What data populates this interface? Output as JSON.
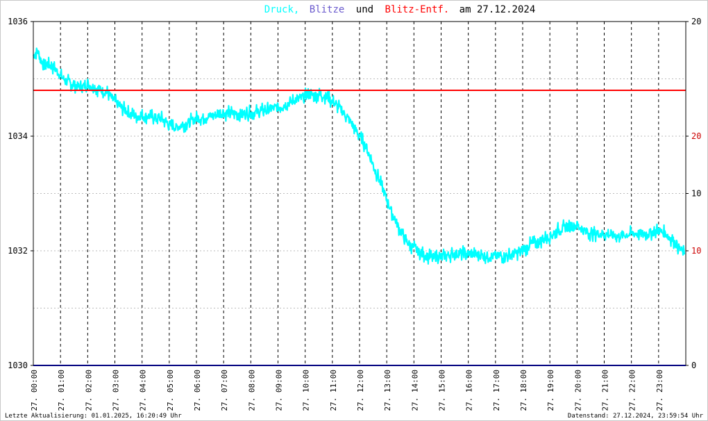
{
  "header": {
    "title_parts": [
      {
        "text": "Druck,",
        "color": "#00ffff"
      },
      {
        "text": "Blitze",
        "color": "#6a5acd"
      },
      {
        "text": "und",
        "color": "#000000"
      },
      {
        "text": "Blitz-Entf.",
        "color": "#ff0000"
      },
      {
        "text": "am 27.12.2024",
        "color": "#000000"
      }
    ]
  },
  "footer": {
    "left": "Letzte Aktualisierung: 01.01.2025, 16:20:49 Uhr",
    "right": "Datenstand: 27.12.2024, 23:59:54 Uhr"
  },
  "colors": {
    "pressure": "#00ffff",
    "lightning": "#00007f",
    "distance": "#ff0000",
    "grid": "#000000",
    "axis": "#000000"
  },
  "chart_data": {
    "type": "line",
    "x_tick_labels": [
      "27. 00:00",
      "27. 01:00",
      "27. 02:00",
      "27. 03:00",
      "27. 04:00",
      "27. 05:00",
      "27. 06:00",
      "27. 07:00",
      "27. 08:00",
      "27. 09:00",
      "27. 10:00",
      "27. 11:00",
      "27. 12:00",
      "27. 13:00",
      "27. 14:00",
      "27. 15:00",
      "27. 16:00",
      "27. 17:00",
      "27. 18:00",
      "27. 19:00",
      "27. 20:00",
      "27. 21:00",
      "27. 22:00",
      "27. 23:00"
    ],
    "x_range_hours": [
      0,
      24
    ],
    "y_left": {
      "range": [
        1030,
        1036
      ],
      "ticks": [
        "1030",
        "1032",
        "1034",
        "1036"
      ]
    },
    "y_right_upper": {
      "ticks": [
        {
          "label": "20",
          "color": "#000000"
        },
        {
          "label": "10",
          "color": "#000000"
        }
      ]
    },
    "y_right_lower": {
      "ticks": [
        {
          "label": "20",
          "color": "#cc0000"
        },
        {
          "label": "10",
          "color": "#cc0000"
        },
        {
          "label": "0",
          "color": "#000000"
        }
      ]
    },
    "series": [
      {
        "key": "pressure",
        "x": [
          0,
          0.15,
          0.3,
          0.5,
          0.75,
          1.0,
          1.25,
          1.5,
          1.75,
          2.0,
          2.25,
          2.5,
          2.75,
          3.0,
          3.25,
          3.5,
          3.75,
          4.0,
          4.25,
          4.5,
          4.75,
          5.0,
          5.25,
          5.5,
          5.75,
          6.0,
          6.5,
          7.0,
          7.5,
          8.0,
          8.5,
          9.0,
          9.25,
          9.5,
          9.75,
          10.0,
          10.25,
          10.5,
          10.75,
          11.0,
          11.25,
          11.5,
          11.75,
          12.0,
          12.25,
          12.5,
          12.75,
          13.0,
          13.25,
          13.5,
          13.75,
          14.0,
          14.25,
          14.5,
          14.75,
          15.0,
          15.5,
          16.0,
          16.5,
          17.0,
          17.5,
          18.0,
          18.25,
          18.5,
          18.75,
          19.0,
          19.25,
          19.5,
          19.75,
          20.0,
          20.25,
          20.5,
          21.0,
          21.5,
          22.0,
          22.5,
          22.75,
          23.0,
          23.25,
          23.5,
          23.75,
          23.95
        ],
        "y": [
          1035.4,
          1035.5,
          1035.3,
          1035.25,
          1035.2,
          1035.05,
          1034.95,
          1034.9,
          1034.85,
          1034.9,
          1034.85,
          1034.8,
          1034.75,
          1034.6,
          1034.5,
          1034.4,
          1034.35,
          1034.35,
          1034.35,
          1034.32,
          1034.3,
          1034.2,
          1034.15,
          1034.2,
          1034.25,
          1034.3,
          1034.35,
          1034.4,
          1034.4,
          1034.4,
          1034.45,
          1034.5,
          1034.55,
          1034.6,
          1034.65,
          1034.7,
          1034.72,
          1034.72,
          1034.7,
          1034.6,
          1034.5,
          1034.35,
          1034.2,
          1034.0,
          1033.8,
          1033.5,
          1033.2,
          1032.9,
          1032.6,
          1032.35,
          1032.15,
          1032.05,
          1031.95,
          1031.9,
          1031.88,
          1031.9,
          1031.95,
          1031.95,
          1031.92,
          1031.9,
          1031.92,
          1032.0,
          1032.1,
          1032.15,
          1032.2,
          1032.25,
          1032.35,
          1032.4,
          1032.4,
          1032.45,
          1032.35,
          1032.3,
          1032.3,
          1032.25,
          1032.3,
          1032.3,
          1032.32,
          1032.35,
          1032.3,
          1032.2,
          1032.05,
          1031.95
        ]
      },
      {
        "key": "distance",
        "y_value": 1034.8
      },
      {
        "key": "lightning",
        "y_value": 1030.0
      }
    ]
  }
}
